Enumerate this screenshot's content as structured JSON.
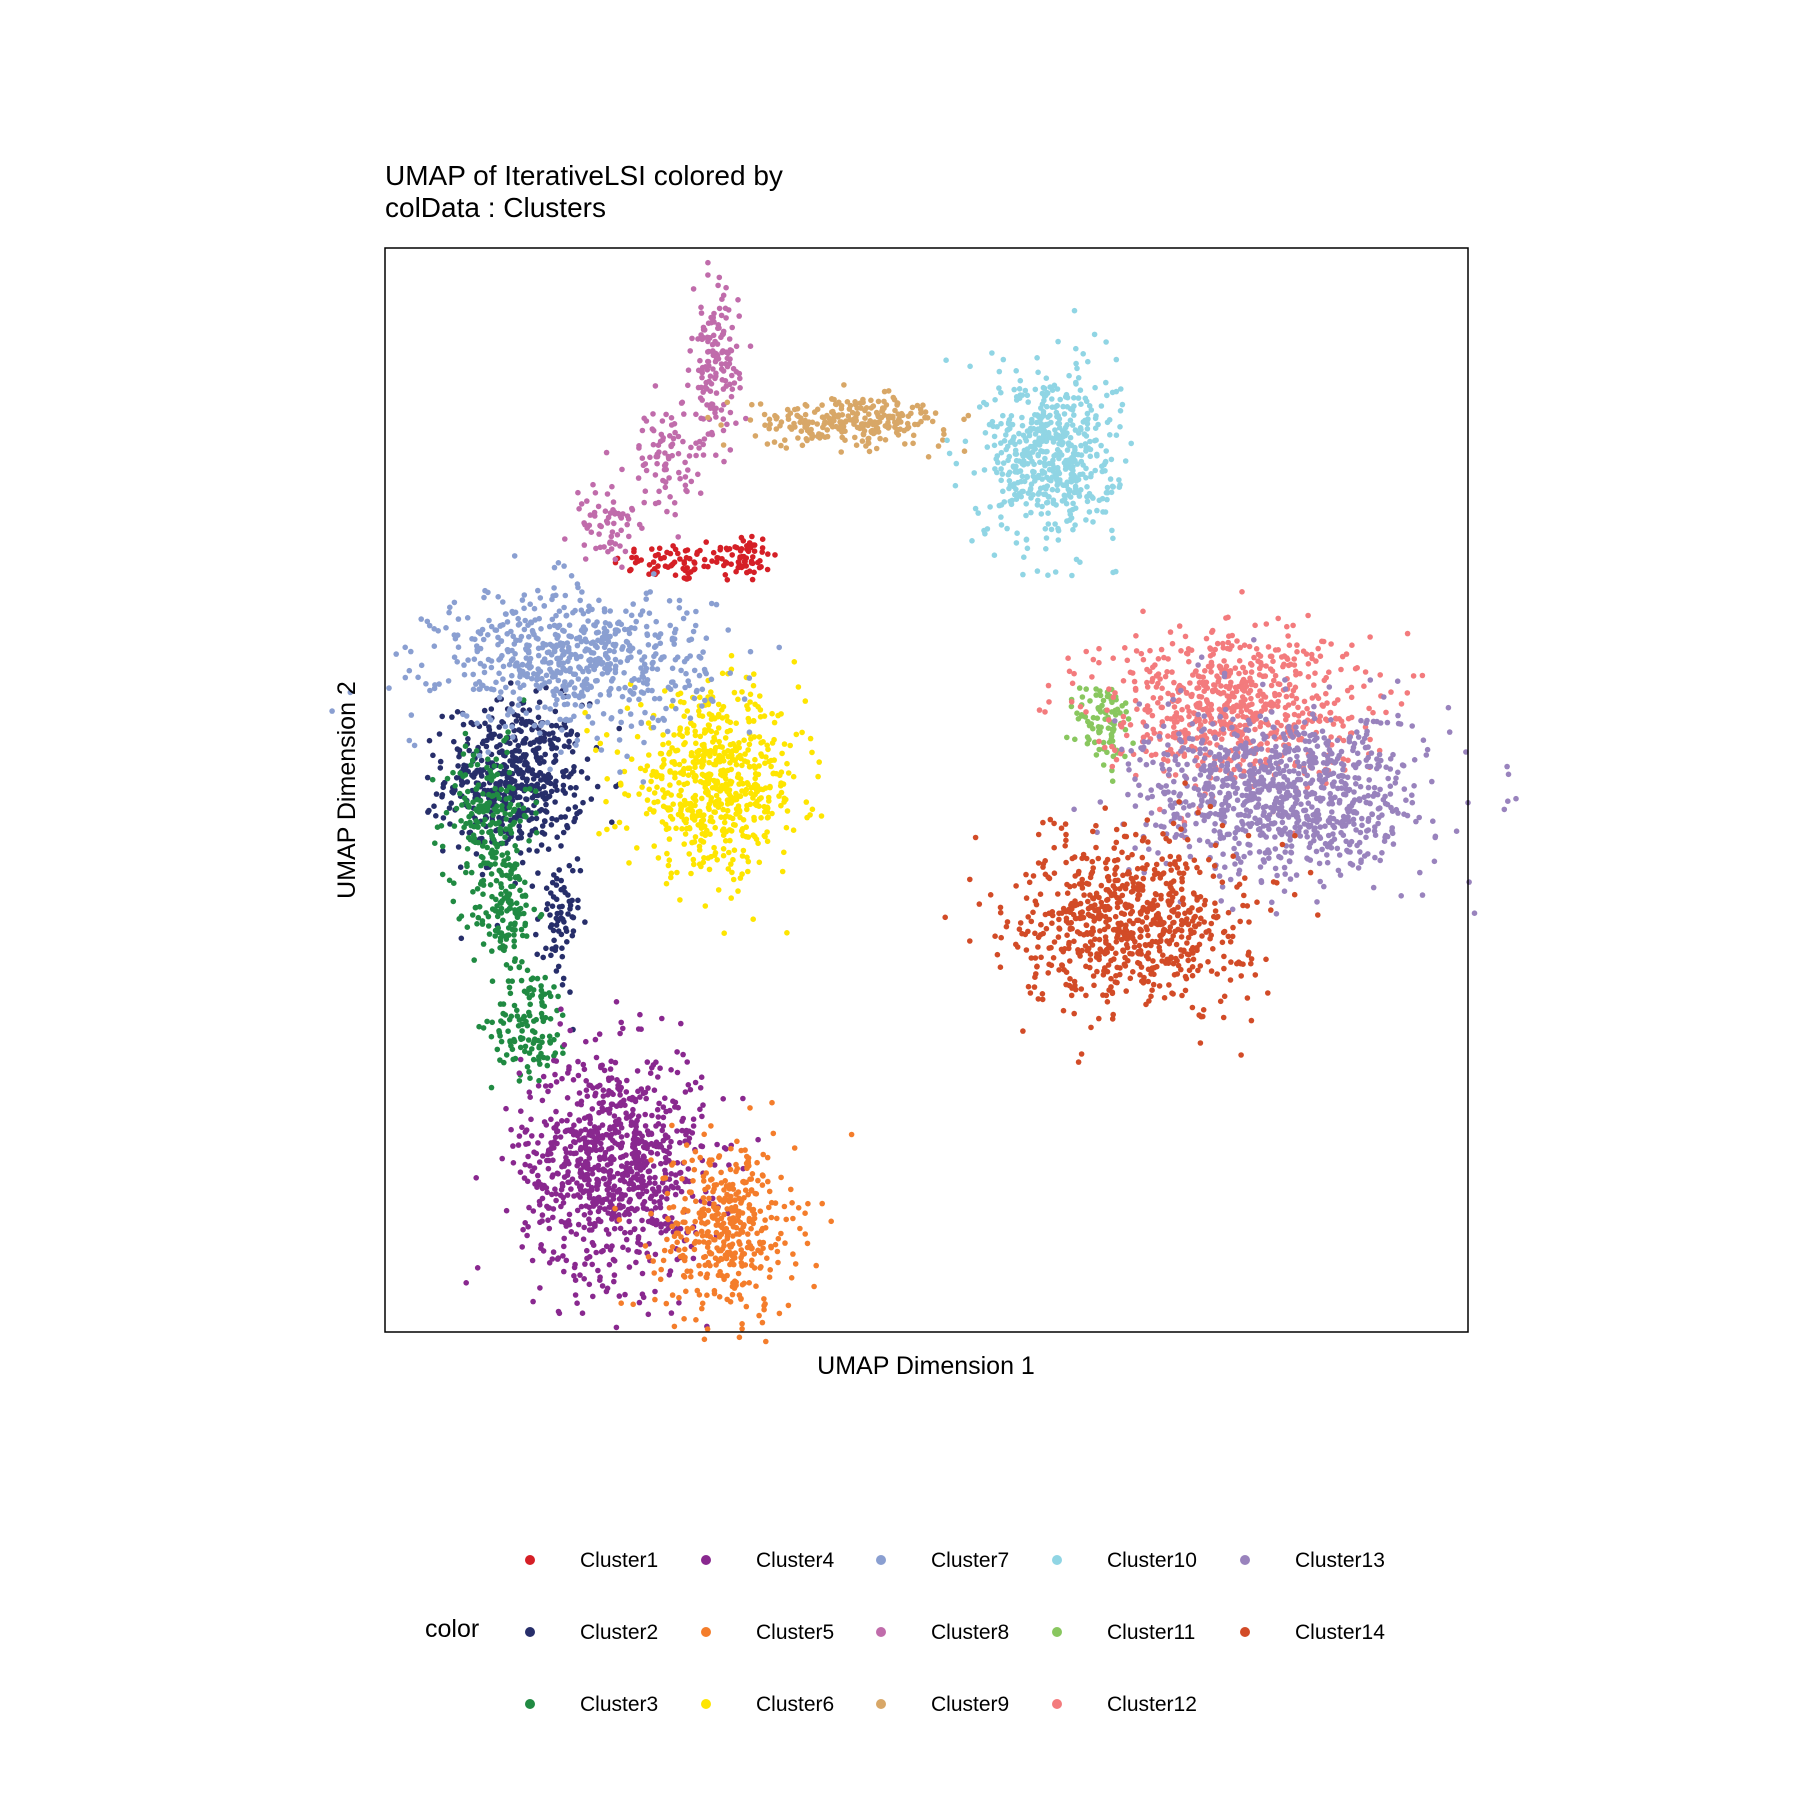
{
  "chart_data": {
    "type": "scatter",
    "title": [
      "UMAP of IterativeLSI  colored by",
      "colData :  Clusters"
    ],
    "xlabel": "UMAP Dimension 1",
    "ylabel": "UMAP Dimension 2",
    "xlim": [
      0,
      100
    ],
    "ylim": [
      0,
      100
    ],
    "grid": false,
    "legend": {
      "title": "color",
      "placement": "bottom"
    },
    "series": [
      {
        "name": "Cluster1",
        "color": "#D51F26",
        "blobs": [
          {
            "cx": 27,
            "cy": 71,
            "sx": 3,
            "sy": 0.9,
            "n": 70
          },
          {
            "cx": 33,
            "cy": 71.5,
            "sx": 1.3,
            "sy": 1.2,
            "n": 60
          }
        ]
      },
      {
        "name": "Cluster2",
        "color": "#272E6A",
        "blobs": [
          {
            "cx": 12,
            "cy": 51,
            "sx": 3.2,
            "sy": 3.5,
            "n": 520
          },
          {
            "cx": 16,
            "cy": 37.5,
            "sx": 1,
            "sy": 3.2,
            "n": 70
          }
        ]
      },
      {
        "name": "Cluster3",
        "color": "#208A42",
        "blobs": [
          {
            "cx": 9.5,
            "cy": 48,
            "sx": 2,
            "sy": 3,
            "n": 180
          },
          {
            "cx": 11,
            "cy": 39,
            "sx": 1.5,
            "sy": 3,
            "n": 150
          },
          {
            "cx": 13.5,
            "cy": 28.5,
            "sx": 1.8,
            "sy": 2.5,
            "n": 130
          }
        ]
      },
      {
        "name": "Cluster4",
        "color": "#89288F",
        "blobs": [
          {
            "cx": 21,
            "cy": 15.5,
            "sx": 4.2,
            "sy": 5.2,
            "n": 900
          }
        ]
      },
      {
        "name": "Cluster5",
        "color": "#F47D2B",
        "blobs": [
          {
            "cx": 31.5,
            "cy": 9.5,
            "sx": 3.2,
            "sy": 4,
            "n": 420
          }
        ]
      },
      {
        "name": "Cluster6",
        "color": "#FEE500",
        "blobs": [
          {
            "cx": 30.5,
            "cy": 50.5,
            "sx": 4,
            "sy": 4,
            "n": 640
          }
        ]
      },
      {
        "name": "Cluster7",
        "color": "#8A9FD1",
        "blobs": [
          {
            "cx": 17.5,
            "cy": 62,
            "sx": 6.2,
            "sy": 3.2,
            "n": 650
          }
        ]
      },
      {
        "name": "Cluster8",
        "color": "#C06CAB",
        "blobs": [
          {
            "cx": 30.5,
            "cy": 89,
            "sx": 1.1,
            "sy": 3.5,
            "n": 150
          },
          {
            "cx": 26,
            "cy": 80.5,
            "sx": 1.8,
            "sy": 2.5,
            "n": 90
          },
          {
            "cx": 20.5,
            "cy": 74.5,
            "sx": 1.5,
            "sy": 2,
            "n": 60
          }
        ]
      },
      {
        "name": "Cluster9",
        "color": "#D8A767",
        "blobs": [
          {
            "cx": 43,
            "cy": 84,
            "sx": 4.5,
            "sy": 1.1,
            "n": 260
          }
        ]
      },
      {
        "name": "Cluster10",
        "color": "#90D5E4",
        "blobs": [
          {
            "cx": 61.5,
            "cy": 81,
            "sx": 3,
            "sy": 4,
            "n": 560
          }
        ]
      },
      {
        "name": "Cluster11",
        "color": "#89C75F",
        "blobs": [
          {
            "cx": 66.5,
            "cy": 56,
            "sx": 1.3,
            "sy": 2.2,
            "n": 90
          }
        ]
      },
      {
        "name": "Cluster12",
        "color": "#F37B7D",
        "blobs": [
          {
            "cx": 78,
            "cy": 58,
            "sx": 6,
            "sy": 3.5,
            "n": 700
          }
        ]
      },
      {
        "name": "Cluster13",
        "color": "#9983BD",
        "blobs": [
          {
            "cx": 83,
            "cy": 49.5,
            "sx": 6.5,
            "sy": 3.8,
            "n": 950
          }
        ]
      },
      {
        "name": "Cluster14",
        "color": "#D24B27",
        "blobs": [
          {
            "cx": 69,
            "cy": 38,
            "sx": 5.3,
            "sy": 4,
            "n": 750
          }
        ]
      }
    ]
  }
}
